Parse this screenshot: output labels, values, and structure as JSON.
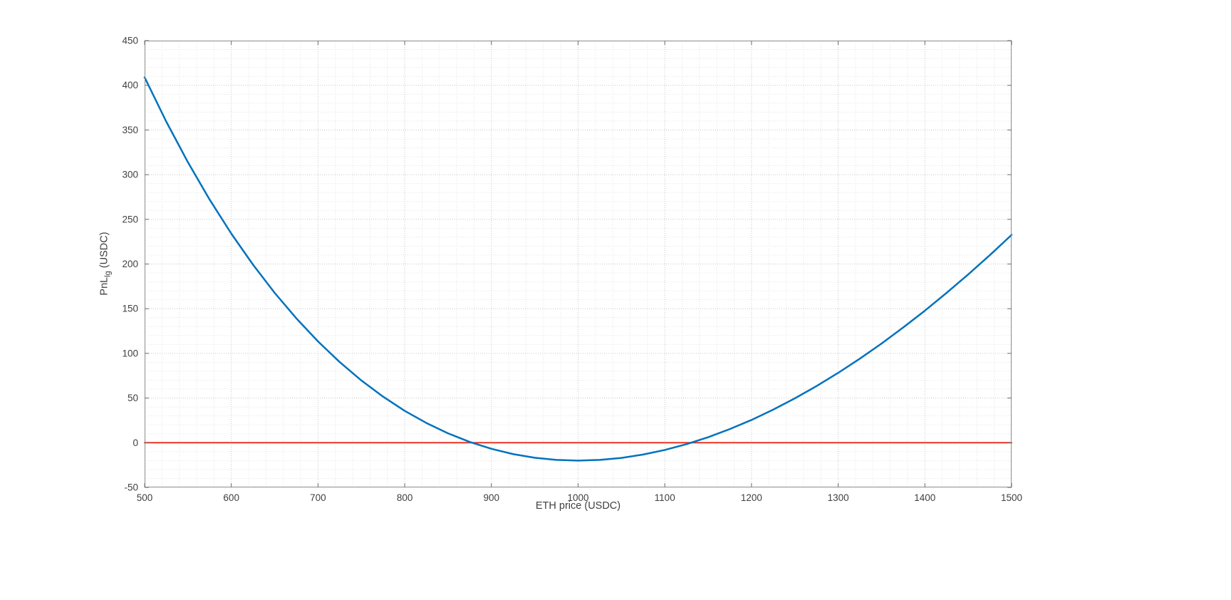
{
  "figure": {
    "background": "#ffffff"
  },
  "labels": {
    "xlabel": "ETH price (USDC)",
    "ylabel_main": "PnL",
    "ylabel_sub": "lg",
    "ylabel_rest": " (USDC)"
  },
  "chart_data": {
    "type": "line",
    "title": "",
    "xlabel": "ETH price (USDC)",
    "ylabel": "PnL_lg (USDC)",
    "xlim": [
      500,
      1500
    ],
    "ylim": [
      -50,
      450
    ],
    "xticks": [
      500,
      600,
      700,
      800,
      900,
      1000,
      1100,
      1200,
      1300,
      1400,
      1500
    ],
    "yticks": [
      -50,
      0,
      50,
      100,
      150,
      200,
      250,
      300,
      350,
      400,
      450
    ],
    "x_minor_step": 20,
    "y_minor_step": 10,
    "grid": "major and minor, dotted, on",
    "legend": "none",
    "series": [
      {
        "name": "pnl-curve",
        "color": "#0072bd",
        "width": 2.5,
        "x": [
          500,
          525,
          550,
          575,
          600,
          625,
          650,
          675,
          700,
          725,
          750,
          775,
          800,
          825,
          850,
          875,
          900,
          925,
          950,
          975,
          1000,
          1025,
          1050,
          1075,
          1100,
          1125,
          1150,
          1175,
          1200,
          1225,
          1250,
          1275,
          1300,
          1325,
          1350,
          1375,
          1400,
          1425,
          1450,
          1475,
          1500
        ],
        "y": [
          408.9,
          359.3,
          313.8,
          272.1,
          234.0,
          199.3,
          167.7,
          139.2,
          113.4,
          90.3,
          69.7,
          51.6,
          35.7,
          22.1,
          10.5,
          0.9,
          -6.8,
          -12.7,
          -16.8,
          -19.2,
          -20.0,
          -19.2,
          -17.0,
          -13.2,
          -8.1,
          -1.6,
          6.2,
          15.3,
          25.5,
          37.0,
          49.7,
          63.4,
          78.2,
          94.1,
          111.0,
          129.0,
          147.8,
          167.7,
          188.4,
          210.0,
          232.6
        ]
      },
      {
        "name": "zero-line",
        "color": "#ec3323",
        "width": 2,
        "x": [
          500,
          1500
        ],
        "y": [
          0,
          0
        ]
      }
    ],
    "annotations": {
      "break_even_points_x": [
        877.5,
        1130.5
      ],
      "minimum_point": {
        "x": 1000,
        "y": -20
      }
    }
  }
}
